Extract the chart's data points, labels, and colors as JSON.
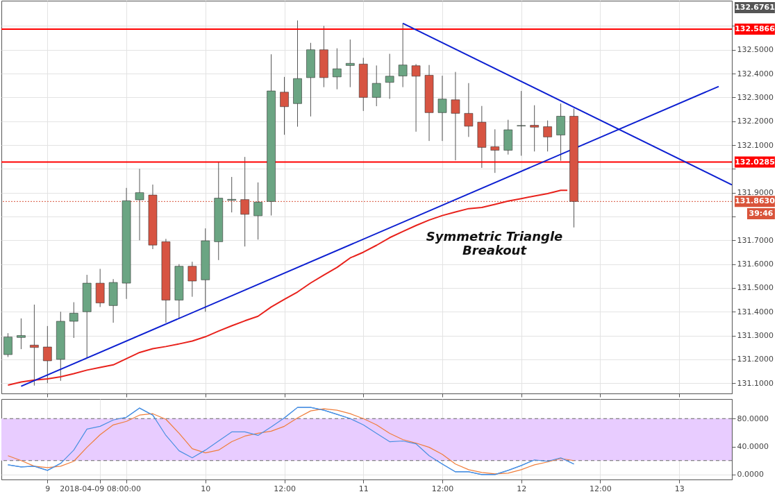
{
  "chart_data": [
    {
      "type": "candlestick",
      "x": [
        "2018-04-08T18:00",
        "2018-04-08T20:00",
        "2018-04-08T22:00",
        "2018-04-09T00:00",
        "2018-04-09T02:00",
        "2018-04-09T04:00",
        "2018-04-09T06:00",
        "2018-04-09T08:00",
        "2018-04-09T10:00",
        "2018-04-09T12:00",
        "2018-04-09T14:00",
        "2018-04-09T16:00",
        "2018-04-09T18:00",
        "2018-04-09T20:00",
        "2018-04-09T22:00",
        "2018-04-10T00:00",
        "2018-04-10T02:00",
        "2018-04-10T04:00",
        "2018-04-10T06:00",
        "2018-04-10T08:00",
        "2018-04-10T10:00",
        "2018-04-10T12:00",
        "2018-04-10T14:00",
        "2018-04-10T16:00",
        "2018-04-10T18:00",
        "2018-04-10T20:00",
        "2018-04-10T22:00",
        "2018-04-11T00:00",
        "2018-04-11T02:00",
        "2018-04-11T04:00",
        "2018-04-11T06:00",
        "2018-04-11T08:00",
        "2018-04-11T10:00",
        "2018-04-11T12:00",
        "2018-04-11T14:00",
        "2018-04-11T16:00",
        "2018-04-11T18:00",
        "2018-04-11T20:00",
        "2018-04-11T22:00",
        "2018-04-12T00:00",
        "2018-04-12T02:00",
        "2018-04-12T04:00",
        "2018-04-12T06:00",
        "2018-04-12T08:00"
      ],
      "ohlc": [
        [
          131.22,
          131.31,
          131.21,
          131.294
        ],
        [
          131.292,
          131.372,
          131.243,
          131.3
        ],
        [
          131.26,
          131.43,
          131.09,
          131.25
        ],
        [
          131.252,
          131.34,
          131.1,
          131.194
        ],
        [
          131.2,
          131.4,
          131.11,
          131.36
        ],
        [
          131.36,
          131.44,
          131.29,
          131.394
        ],
        [
          131.4,
          131.555,
          131.206,
          131.52
        ],
        [
          131.52,
          131.58,
          131.42,
          131.437
        ],
        [
          131.426,
          131.537,
          131.354,
          131.523
        ],
        [
          131.52,
          131.92,
          131.454,
          131.866
        ],
        [
          131.87,
          132.0,
          131.7,
          131.9
        ],
        [
          131.89,
          131.934,
          131.663,
          131.68
        ],
        [
          131.694,
          131.706,
          131.354,
          131.449
        ],
        [
          131.449,
          131.6,
          131.37,
          131.591
        ],
        [
          131.591,
          131.61,
          131.463,
          131.529
        ],
        [
          131.534,
          131.75,
          131.4,
          131.698
        ],
        [
          131.694,
          132.03,
          131.617,
          131.877
        ],
        [
          131.868,
          131.966,
          131.817,
          131.872
        ],
        [
          131.871,
          132.05,
          131.674,
          131.809
        ],
        [
          131.803,
          131.943,
          131.703,
          131.86
        ],
        [
          131.863,
          132.481,
          131.804,
          132.327
        ],
        [
          132.322,
          132.386,
          132.143,
          132.261
        ],
        [
          132.274,
          132.623,
          132.177,
          132.379
        ],
        [
          132.383,
          132.529,
          132.22,
          132.5
        ],
        [
          132.5,
          132.6,
          132.343,
          132.383
        ],
        [
          132.386,
          132.506,
          132.334,
          132.42
        ],
        [
          132.434,
          132.543,
          132.343,
          132.443
        ],
        [
          132.44,
          132.466,
          132.243,
          132.3
        ],
        [
          132.3,
          132.434,
          132.263,
          132.359
        ],
        [
          132.363,
          132.483,
          132.294,
          132.389
        ],
        [
          132.39,
          132.611,
          132.343,
          132.436
        ],
        [
          132.433,
          132.44,
          132.156,
          132.389
        ],
        [
          132.393,
          132.436,
          132.117,
          132.236
        ],
        [
          132.236,
          132.391,
          132.117,
          132.293
        ],
        [
          132.29,
          132.407,
          132.036,
          132.233
        ],
        [
          132.233,
          132.36,
          132.134,
          132.179
        ],
        [
          132.196,
          132.264,
          132.004,
          132.09
        ],
        [
          132.093,
          132.166,
          131.983,
          132.078
        ],
        [
          132.078,
          132.206,
          132.06,
          132.164
        ],
        [
          132.18,
          132.327,
          132.055,
          132.182
        ],
        [
          132.183,
          132.267,
          132.073,
          132.175
        ],
        [
          132.177,
          132.203,
          132.073,
          132.134
        ],
        [
          132.142,
          132.274,
          132.034,
          132.221
        ],
        [
          132.221,
          132.253,
          131.754,
          131.863
        ]
      ],
      "colors": [
        "#6ba583",
        "#6ba583",
        "#d75442",
        "#d75442",
        "#6ba583",
        "#6ba583",
        "#6ba583",
        "#d75442",
        "#6ba583",
        "#6ba583",
        "#6ba583",
        "#d75442",
        "#d75442",
        "#6ba583",
        "#d75442",
        "#6ba583",
        "#6ba583",
        "#6ba583",
        "#d75442",
        "#6ba583",
        "#6ba583",
        "#d75442",
        "#6ba583",
        "#6ba583",
        "#d75442",
        "#6ba583",
        "#6ba583",
        "#d75442",
        "#6ba583",
        "#6ba583",
        "#6ba583",
        "#d75442",
        "#d75442",
        "#6ba583",
        "#d75442",
        "#d75442",
        "#d75442",
        "#d75442",
        "#6ba583",
        "#6ba583",
        "#d75442",
        "#d75442",
        "#6ba583",
        "#d75442"
      ],
      "series": [
        {
          "type": "line",
          "color": "#e8211b",
          "x": [
            "2018-04-08T18:00",
            "2018-04-08T20:00",
            "2018-04-08T22:00",
            "2018-04-09T00:00",
            "2018-04-09T02:00",
            "2018-04-09T04:00",
            "2018-04-09T06:00",
            "2018-04-09T08:00",
            "2018-04-09T10:00",
            "2018-04-09T12:00",
            "2018-04-09T14:00",
            "2018-04-09T16:00",
            "2018-04-09T18:00",
            "2018-04-09T20:00",
            "2018-04-09T22:00",
            "2018-04-10T00:00",
            "2018-04-10T02:00",
            "2018-04-10T04:00",
            "2018-04-10T06:00",
            "2018-04-10T08:00",
            "2018-04-10T10:00",
            "2018-04-10T12:00",
            "2018-04-10T14:00",
            "2018-04-10T16:00",
            "2018-04-10T18:00",
            "2018-04-10T20:00",
            "2018-04-10T22:00",
            "2018-04-11T00:00",
            "2018-04-11T02:00",
            "2018-04-11T04:00",
            "2018-04-11T06:00",
            "2018-04-11T08:00",
            "2018-04-11T10:00",
            "2018-04-11T12:00",
            "2018-04-11T14:00",
            "2018-04-11T16:00",
            "2018-04-11T18:00",
            "2018-04-11T20:00",
            "2018-04-11T22:00",
            "2018-04-12T00:00",
            "2018-04-12T02:00",
            "2018-04-12T04:00",
            "2018-04-12T06:00",
            "2018-04-12T07:00"
          ],
          "values": [
            131.092,
            131.105,
            131.113,
            131.118,
            131.127,
            131.14,
            131.155,
            131.166,
            131.177,
            131.203,
            131.229,
            131.245,
            131.254,
            131.265,
            131.277,
            131.295,
            131.319,
            131.341,
            131.362,
            131.381,
            131.42,
            131.452,
            131.483,
            131.521,
            131.554,
            131.586,
            131.626,
            131.65,
            131.679,
            131.711,
            131.737,
            131.762,
            131.785,
            131.804,
            131.819,
            131.833,
            131.838,
            131.851,
            131.865,
            131.875,
            131.886,
            131.896,
            131.91,
            131.91
          ]
        },
        {
          "type": "line",
          "color": "#0c1fd1",
          "x": [
            "2018-04-08T20:00",
            "2018-04-13T06:00"
          ],
          "values": [
            131.087,
            132.346
          ]
        },
        {
          "type": "line",
          "color": "#0c1fd1",
          "x": [
            "2018-04-11T06:00",
            "2018-04-13T08:00"
          ],
          "values": [
            132.611,
            131.933
          ]
        }
      ],
      "ref_lines": [
        {
          "axis": "y",
          "value": 132.5866,
          "label": "132.5866",
          "color": "#ff0000"
        },
        {
          "axis": "y",
          "value": 132.0285,
          "label": "132.0285",
          "color": "#ff0000"
        },
        {
          "axis": "y",
          "value": 131.863,
          "label": "131.8630",
          "color": "#d9543b",
          "line_style": "dotted"
        }
      ],
      "annotations": [
        "Symmetric Triangle\nBreakout",
        "132.6761",
        "39:46"
      ],
      "xlim": [
        "2018-04-08T17:00",
        "2018-04-13T08:00"
      ],
      "xticks": [
        {
          "value": "2018-04-09T00:00",
          "label": null
        },
        {
          "value": "2018-04-09T12:00",
          "label": null
        },
        {
          "value": "2018-04-10T00:00",
          "label": null
        },
        {
          "value": "2018-04-10T12:00",
          "label": null
        },
        {
          "value": "2018-04-11T00:00",
          "label": null
        },
        {
          "value": "2018-04-11T12:00",
          "label": null
        },
        {
          "value": "2018-04-12T00:00",
          "label": null
        },
        {
          "value": "2018-04-12T12:00",
          "label": null
        },
        {
          "value": "2018-04-13T00:00",
          "label": null
        }
      ],
      "ylim": [
        131.057,
        132.706
      ],
      "yticks": [
        {
          "value": 131.1,
          "label": "131.1000"
        },
        {
          "value": 131.2,
          "label": "131.2000"
        },
        {
          "value": 131.3,
          "label": "131.3000"
        },
        {
          "value": 131.4,
          "label": "131.4000"
        },
        {
          "value": 131.5,
          "label": "131.5000"
        },
        {
          "value": 131.6,
          "label": "131.6000"
        },
        {
          "value": 131.7,
          "label": "131.7000"
        },
        {
          "value": 131.8,
          "label": null
        },
        {
          "value": 131.9,
          "label": "131.9000"
        },
        {
          "value": 132.0,
          "label": null
        },
        {
          "value": 132.1,
          "label": "132.1000"
        },
        {
          "value": 132.2,
          "label": "132.2000"
        },
        {
          "value": 132.3,
          "label": "132.3000"
        },
        {
          "value": 132.4,
          "label": "132.4000"
        },
        {
          "value": 132.5,
          "label": "132.5000"
        },
        {
          "value": 132.6,
          "label": null
        }
      ],
      "tick_labels": "y",
      "grid": true
    },
    {
      "type": "line",
      "x": [
        "2018-04-08T18:00",
        "2018-04-08T20:00",
        "2018-04-08T22:00",
        "2018-04-09T00:00",
        "2018-04-09T02:00",
        "2018-04-09T04:00",
        "2018-04-09T06:00",
        "2018-04-09T08:00",
        "2018-04-09T10:00",
        "2018-04-09T12:00",
        "2018-04-09T14:00",
        "2018-04-09T16:00",
        "2018-04-09T18:00",
        "2018-04-09T20:00",
        "2018-04-09T22:00",
        "2018-04-10T00:00",
        "2018-04-10T02:00",
        "2018-04-10T04:00",
        "2018-04-10T06:00",
        "2018-04-10T08:00",
        "2018-04-10T10:00",
        "2018-04-10T12:00",
        "2018-04-10T14:00",
        "2018-04-10T16:00",
        "2018-04-10T18:00",
        "2018-04-10T20:00",
        "2018-04-10T22:00",
        "2018-04-11T00:00",
        "2018-04-11T02:00",
        "2018-04-11T04:00",
        "2018-04-11T06:00",
        "2018-04-11T08:00",
        "2018-04-11T10:00",
        "2018-04-11T12:00",
        "2018-04-11T14:00",
        "2018-04-11T16:00",
        "2018-04-11T18:00",
        "2018-04-11T20:00",
        "2018-04-11T22:00",
        "2018-04-12T00:00",
        "2018-04-12T02:00",
        "2018-04-12T04:00",
        "2018-04-12T06:00",
        "2018-04-12T08:00"
      ],
      "series": [
        {
          "color": "#4a90e2",
          "values": [
            14,
            11,
            12,
            6,
            16,
            35,
            65,
            69,
            78,
            82,
            95,
            85,
            56,
            34,
            24,
            35,
            48,
            61,
            61,
            56,
            68,
            81,
            96,
            96,
            92,
            86,
            80,
            71,
            59,
            47,
            48,
            44,
            27,
            15,
            4,
            4,
            0,
            0,
            6,
            13,
            21,
            19,
            24,
            15
          ]
        },
        {
          "color": "#f07d3a",
          "values": [
            27,
            20,
            12,
            10,
            12,
            19,
            39,
            57,
            71,
            76,
            85,
            87,
            79,
            59,
            37,
            31,
            35,
            47,
            55,
            59,
            62,
            69,
            81,
            91,
            94,
            92,
            87,
            80,
            71,
            59,
            50,
            45,
            39,
            29,
            15,
            7,
            3,
            1,
            2,
            7,
            14,
            18,
            23,
            20
          ]
        }
      ],
      "bands": [
        {
          "axis": "y",
          "from": 20,
          "to": 80,
          "color": "#e8ccff"
        }
      ],
      "ref_lines": [
        {
          "axis": "y",
          "value": 20,
          "color": "#666666",
          "line_style": "dashed"
        },
        {
          "axis": "y",
          "value": 80,
          "color": "#666666",
          "line_style": "dashed"
        }
      ],
      "xlim": [
        "2018-04-08T17:00",
        "2018-04-13T08:00"
      ],
      "xticks": [
        {
          "value": "2018-04-09T00:00",
          "label": "9"
        },
        {
          "value": "2018-04-09T08:00",
          "label": "2018-04-09 08:00:00"
        },
        {
          "value": "2018-04-09T12:00",
          "label": null
        },
        {
          "value": "2018-04-10T00:00",
          "label": "10"
        },
        {
          "value": "2018-04-10T12:00",
          "label": "12:00"
        },
        {
          "value": "2018-04-11T00:00",
          "label": "11"
        },
        {
          "value": "2018-04-11T12:00",
          "label": "12:00"
        },
        {
          "value": "2018-04-12T00:00",
          "label": "12"
        },
        {
          "value": "2018-04-12T12:00",
          "label": "12:00"
        },
        {
          "value": "2018-04-13T00:00",
          "label": "13"
        }
      ],
      "ylim": [
        -7,
        108
      ],
      "yticks": [
        {
          "value": 0,
          "label": "0.0000"
        },
        {
          "value": 40,
          "label": "40.0000"
        },
        {
          "value": 80,
          "label": "80.0000"
        }
      ],
      "grid": true
    }
  ]
}
